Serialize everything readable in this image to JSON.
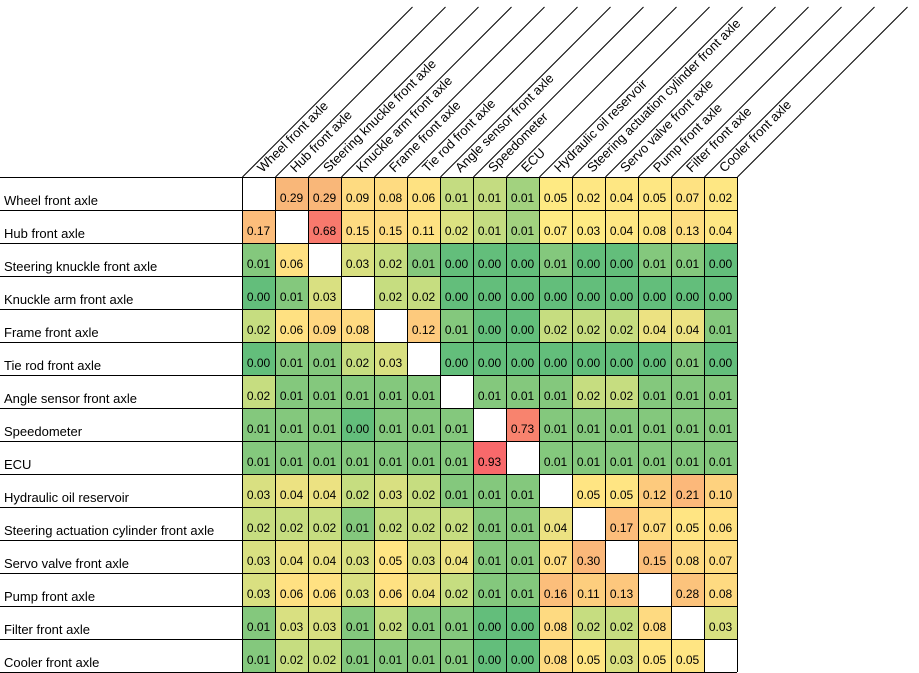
{
  "chart_data": {
    "type": "heatmap",
    "title": "",
    "xlabel": "",
    "ylabel": "",
    "labels": [
      "Wheel front axle",
      "Hub front axle",
      "Steering knuckle front axle",
      "Knuckle arm front axle",
      "Frame front axle",
      "Tie rod front axle",
      "Angle sensor front axle",
      "Speedometer",
      "ECU",
      "Hydraulic oil reservoir",
      "Steering actuation cylinder front axle",
      "Servo valve front axle",
      "Pump front axle",
      "Filter front axle",
      "Cooler front axle"
    ],
    "values": [
      [
        null,
        0.29,
        0.29,
        0.09,
        0.08,
        0.06,
        0.01,
        0.01,
        0.01,
        0.05,
        0.02,
        0.04,
        0.05,
        0.07,
        0.02
      ],
      [
        0.17,
        null,
        0.68,
        0.15,
        0.15,
        0.11,
        0.02,
        0.01,
        0.01,
        0.07,
        0.03,
        0.04,
        0.08,
        0.13,
        0.04
      ],
      [
        0.01,
        0.06,
        null,
        0.03,
        0.02,
        0.01,
        0.0,
        0.0,
        0.0,
        0.01,
        0.0,
        0.0,
        0.01,
        0.01,
        0.0
      ],
      [
        0.0,
        0.01,
        0.03,
        null,
        0.02,
        0.02,
        0.0,
        0.0,
        0.0,
        0.0,
        0.0,
        0.0,
        0.0,
        0.0,
        0.0
      ],
      [
        0.02,
        0.06,
        0.09,
        0.08,
        null,
        0.12,
        0.01,
        0.0,
        0.0,
        0.02,
        0.02,
        0.02,
        0.04,
        0.04,
        0.01
      ],
      [
        0.0,
        0.01,
        0.01,
        0.02,
        0.03,
        null,
        0.0,
        0.0,
        0.0,
        0.0,
        0.0,
        0.0,
        0.0,
        0.01,
        0.0
      ],
      [
        0.02,
        0.01,
        0.01,
        0.01,
        0.01,
        0.01,
        null,
        0.01,
        0.01,
        0.01,
        0.02,
        0.02,
        0.01,
        0.01,
        0.01
      ],
      [
        0.01,
        0.01,
        0.01,
        0.0,
        0.01,
        0.01,
        0.01,
        null,
        0.73,
        0.01,
        0.01,
        0.01,
        0.01,
        0.01,
        0.01
      ],
      [
        0.01,
        0.01,
        0.01,
        0.01,
        0.01,
        0.01,
        0.01,
        0.93,
        null,
        0.01,
        0.01,
        0.01,
        0.01,
        0.01,
        0.01
      ],
      [
        0.03,
        0.04,
        0.04,
        0.02,
        0.03,
        0.02,
        0.01,
        0.01,
        0.01,
        null,
        0.05,
        0.05,
        0.12,
        0.21,
        0.1
      ],
      [
        0.02,
        0.02,
        0.02,
        0.01,
        0.02,
        0.02,
        0.02,
        0.01,
        0.01,
        0.04,
        null,
        0.17,
        0.07,
        0.05,
        0.06
      ],
      [
        0.03,
        0.04,
        0.04,
        0.03,
        0.05,
        0.03,
        0.04,
        0.01,
        0.01,
        0.07,
        0.3,
        null,
        0.15,
        0.08,
        0.07
      ],
      [
        0.03,
        0.06,
        0.06,
        0.03,
        0.06,
        0.04,
        0.02,
        0.01,
        0.01,
        0.16,
        0.11,
        0.13,
        null,
        0.28,
        0.08
      ],
      [
        0.01,
        0.03,
        0.03,
        0.01,
        0.02,
        0.01,
        0.01,
        0.0,
        0.0,
        0.08,
        0.02,
        0.02,
        0.08,
        null,
        0.03
      ],
      [
        0.01,
        0.02,
        0.02,
        0.01,
        0.01,
        0.01,
        0.01,
        0.0,
        0.0,
        0.08,
        0.05,
        0.03,
        0.05,
        0.05,
        null
      ]
    ],
    "cell_colors": [
      [
        null,
        "#f9b779",
        "#f9b779",
        "#fedb81",
        "#fedb81",
        "#fee282",
        "#c4dc81",
        "#c4dc81",
        "#a2d27f",
        "#feea83",
        "#fee783",
        "#fee783",
        "#fee783",
        "#fee282",
        "#fee783"
      ],
      [
        null,
        null,
        "#f8796d",
        "#fedb81",
        "#fedb81",
        "#fee282",
        "#dce281",
        "#c4dc81",
        "#a2d27f",
        "#feea83",
        "#feea83",
        "#fee783",
        "#fee783",
        "#fede81",
        "#fee783"
      ],
      [
        null,
        null,
        null,
        null,
        null,
        null,
        null,
        null,
        null,
        null,
        null,
        null,
        null,
        null,
        null
      ],
      [
        null,
        null,
        null,
        null,
        null,
        null,
        null,
        null,
        null,
        null,
        null,
        null,
        null,
        null,
        null
      ],
      [
        null,
        null,
        null,
        null,
        null,
        null,
        null,
        null,
        null,
        null,
        null,
        null,
        null,
        null,
        null
      ],
      [
        null,
        null,
        null,
        null,
        null,
        null,
        null,
        null,
        null,
        null,
        null,
        null,
        null,
        null,
        null
      ],
      [
        null,
        null,
        null,
        null,
        null,
        null,
        null,
        null,
        null,
        null,
        null,
        null,
        null,
        null,
        null
      ],
      [
        null,
        null,
        null,
        null,
        null,
        null,
        null,
        null,
        "#f8836e",
        null,
        null,
        null,
        null,
        null,
        null
      ],
      [
        null,
        null,
        null,
        null,
        null,
        null,
        null,
        "#f8696b",
        null,
        null,
        null,
        null,
        null,
        null,
        null
      ],
      [
        null,
        null,
        null,
        null,
        null,
        null,
        null,
        null,
        null,
        null,
        null,
        null,
        null,
        null,
        null
      ],
      [
        null,
        null,
        null,
        null,
        null,
        null,
        null,
        null,
        null,
        null,
        null,
        null,
        null,
        null,
        null
      ],
      [
        null,
        null,
        null,
        null,
        null,
        null,
        null,
        null,
        null,
        null,
        "#fbb87a",
        null,
        null,
        null,
        null
      ],
      [
        null,
        null,
        null,
        null,
        null,
        null,
        null,
        null,
        null,
        null,
        null,
        null,
        null,
        "#fcc37c",
        null
      ],
      [
        null,
        null,
        null,
        null,
        null,
        null,
        null,
        null,
        null,
        null,
        null,
        null,
        null,
        null,
        null
      ],
      [
        null,
        null,
        null,
        null,
        null,
        null,
        null,
        null,
        null,
        null,
        null,
        null,
        null,
        null,
        null
      ]
    ],
    "colors": {
      "low": "#63be7b",
      "mid_low": "#c6dd80",
      "mid": "#ffe583",
      "mid_high": "#fcbf7b",
      "high": "#f8696b",
      "diagonal": "#ffffff",
      "grid": "#000000"
    },
    "grid": true,
    "legend": "none"
  }
}
